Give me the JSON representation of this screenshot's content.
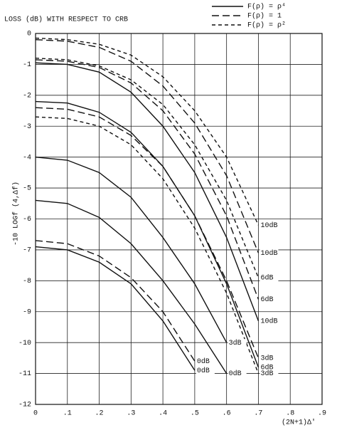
{
  "chart_data": {
    "type": "line",
    "title": "LOSS (dB) WITH RESPECT TO CRB",
    "y_label": "-10 LOGf (4,Δf)",
    "x_label": "(2N+1)Δ'",
    "legend": [
      {
        "label": "F(ρ) = ρ⁴",
        "style": "solid"
      },
      {
        "label": "F(ρ) = 1",
        "style": "long-dash"
      },
      {
        "label": "F(ρ) = ρ²",
        "style": "short-dash"
      }
    ],
    "grid": true,
    "color": "#111111",
    "xlim": [
      0,
      0.9
    ],
    "ylim": [
      -12,
      0
    ],
    "xticks": [
      0,
      {
        "value": 0.1,
        "label": ".1"
      },
      {
        "value": 0.2,
        "label": ".2"
      },
      {
        "value": 0.3,
        "label": ".3"
      },
      {
        "value": 0.4,
        "label": ".4"
      },
      {
        "value": 0.5,
        "label": ".5"
      },
      {
        "value": 0.6,
        "label": ".6"
      },
      {
        "value": 0.7,
        "label": ".7"
      },
      {
        "value": 0.8,
        "label": ".8"
      },
      {
        "value": 0.9,
        "label": ".9"
      }
    ],
    "yticks": [
      0,
      -1,
      -2,
      -3,
      -4,
      -5,
      -6,
      -7,
      -8,
      -9,
      -10,
      -11,
      -12
    ],
    "x": [
      0,
      0.1,
      0.2,
      0.3,
      0.4,
      0.5,
      0.6,
      0.7
    ],
    "series": [
      {
        "style": "short-dash",
        "label": "10dB",
        "values": [
          -0.15,
          -0.2,
          -0.35,
          -0.7,
          -1.4,
          -2.5,
          -4.0,
          -6.2
        ]
      },
      {
        "style": "long-dash",
        "label": "10dB",
        "values": [
          -0.2,
          -0.25,
          -0.45,
          -0.9,
          -1.7,
          -2.9,
          -4.6,
          -7.1
        ]
      },
      {
        "style": "short-dash",
        "label": "6dB",
        "values": [
          -0.8,
          -0.85,
          -1.05,
          -1.5,
          -2.3,
          -3.6,
          -5.4,
          -7.9
        ]
      },
      {
        "style": "long-dash",
        "label": "6dB",
        "values": [
          -0.85,
          -0.9,
          -1.1,
          -1.6,
          -2.5,
          -3.9,
          -5.9,
          -8.6
        ]
      },
      {
        "style": "solid",
        "label": "10dB",
        "values": [
          -0.95,
          -1.0,
          -1.25,
          -1.9,
          -3.0,
          -4.5,
          -6.6,
          -9.3
        ]
      },
      {
        "style": "long-dash",
        "label": "3dB",
        "values": [
          -2.4,
          -2.45,
          -2.7,
          -3.3,
          -4.3,
          -5.9,
          -8.0,
          -10.5
        ]
      },
      {
        "style": "solid",
        "label": "6dB",
        "values": [
          -2.2,
          -2.25,
          -2.55,
          -3.2,
          -4.3,
          -5.9,
          -8.1,
          -10.8
        ]
      },
      {
        "style": "short-dash",
        "label": "3dB",
        "values": [
          -2.7,
          -2.75,
          -3.0,
          -3.6,
          -4.7,
          -6.3,
          -8.4,
          -11.0
        ]
      },
      {
        "style": "solid",
        "label": "3dB",
        "values": [
          -4.0,
          -4.1,
          -4.5,
          -5.3,
          -6.6,
          -8.1,
          -10.0,
          null
        ]
      },
      {
        "style": "solid",
        "label": "0dB",
        "values": [
          -5.4,
          -5.5,
          -5.95,
          -6.8,
          -8.0,
          -9.4,
          -11.0,
          null
        ]
      },
      {
        "style": "long-dash",
        "label": "0dB",
        "values": [
          -6.7,
          -6.8,
          -7.2,
          -7.9,
          -9.0,
          -10.6,
          null,
          null
        ]
      },
      {
        "style": "solid",
        "label": "0dB",
        "values": [
          -6.9,
          -7.0,
          -7.4,
          -8.1,
          -9.3,
          -10.9,
          null,
          null
        ]
      }
    ]
  }
}
